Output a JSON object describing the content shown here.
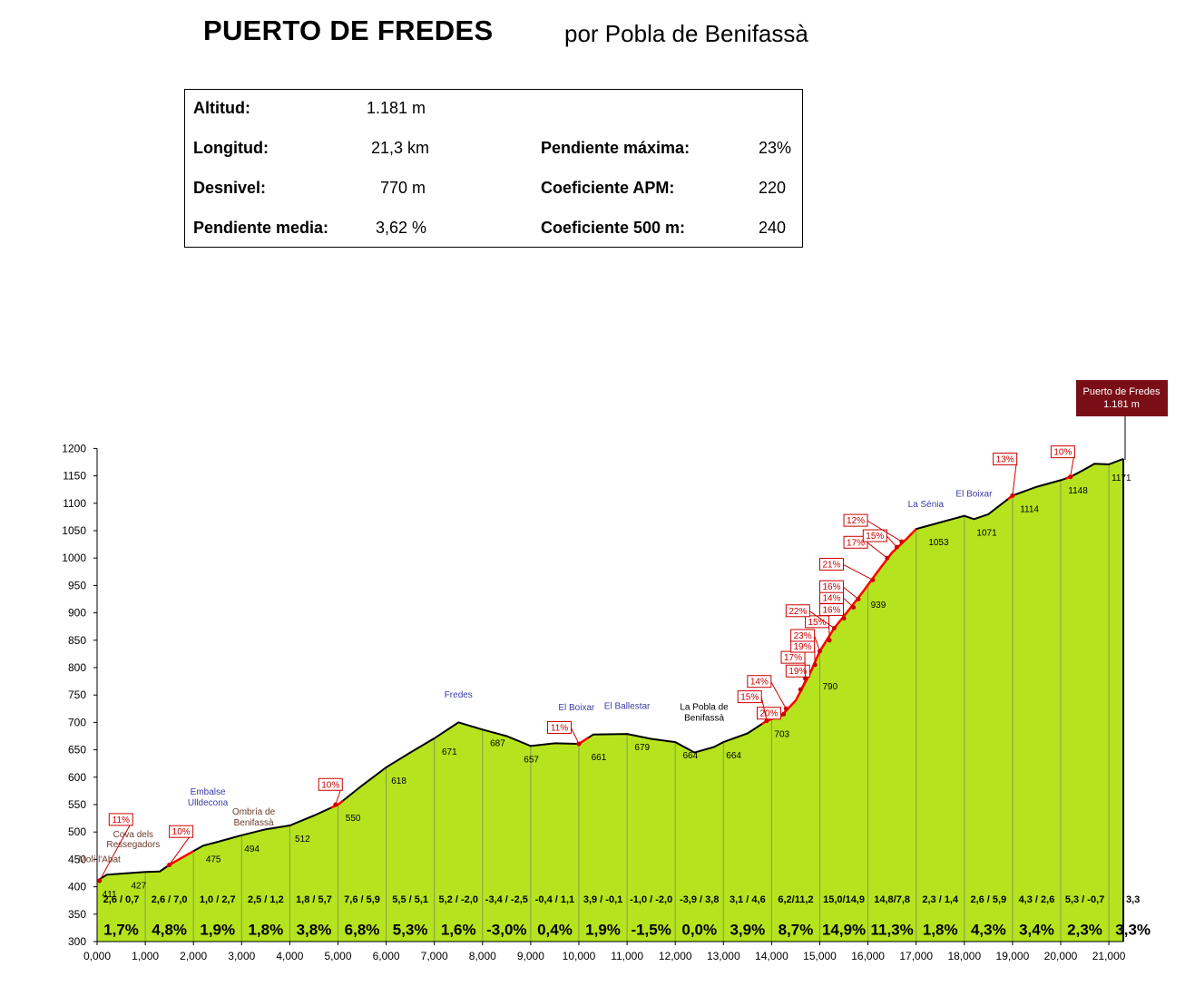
{
  "header": {
    "title": "PUERTO DE FREDES",
    "subtitle": "por Pobla de Benifassà"
  },
  "info": {
    "altitud_label": "Altitud:",
    "altitud_value": "1.181 m",
    "longitud_label": "Longitud:",
    "longitud_value": "21,3 km",
    "desnivel_label": "Desnivel:",
    "desnivel_value": "770 m",
    "pend_media_label": "Pendiente media:",
    "pend_media_value": "3,62 %",
    "pend_max_label": "Pendiente máxima:",
    "pend_max_value": "23%",
    "coef_apm_label": "Coeficiente APM:",
    "coef_apm_value": "220",
    "coef_500_label": "Coeficiente 500 m:",
    "coef_500_value": "240"
  },
  "summit_box": {
    "name": "Puerto de Fredes",
    "alt": "1.181 m"
  },
  "chart_data": {
    "type": "area",
    "xlim": [
      0,
      21.3
    ],
    "ylim": [
      300,
      1200
    ],
    "x_ticks": [
      "0,000",
      "1,000",
      "2,000",
      "3,000",
      "4,000",
      "5,000",
      "6,000",
      "7,000",
      "8,000",
      "9,000",
      "10,000",
      "11,000",
      "12,000",
      "13,000",
      "14,000",
      "15,000",
      "16,000",
      "17,000",
      "18,000",
      "19,000",
      "20,000",
      "21,000"
    ],
    "y_ticks": [
      300,
      350,
      400,
      450,
      500,
      550,
      600,
      650,
      700,
      750,
      800,
      850,
      900,
      950,
      1000,
      1050,
      1100,
      1150,
      1200
    ],
    "profile": [
      [
        0,
        411
      ],
      [
        0.2,
        422
      ],
      [
        0.5,
        424
      ],
      [
        1,
        427
      ],
      [
        1.3,
        428
      ],
      [
        1.5,
        440
      ],
      [
        2,
        465
      ],
      [
        2.2,
        475
      ],
      [
        2.5,
        482
      ],
      [
        3,
        494
      ],
      [
        3.5,
        505
      ],
      [
        4,
        512
      ],
      [
        4.5,
        530
      ],
      [
        5,
        550
      ],
      [
        5.5,
        585
      ],
      [
        6,
        618
      ],
      [
        6.5,
        645
      ],
      [
        7,
        671
      ],
      [
        7.5,
        700
      ],
      [
        8,
        687
      ],
      [
        8.5,
        675
      ],
      [
        9,
        657
      ],
      [
        9.5,
        662
      ],
      [
        10,
        661
      ],
      [
        10.3,
        678
      ],
      [
        11,
        679
      ],
      [
        11.5,
        670
      ],
      [
        12,
        664
      ],
      [
        12.4,
        645
      ],
      [
        12.8,
        655
      ],
      [
        13,
        664
      ],
      [
        13.5,
        680
      ],
      [
        13.9,
        703
      ],
      [
        14.2,
        712
      ],
      [
        14.5,
        740
      ],
      [
        14.8,
        790
      ],
      [
        15,
        830
      ],
      [
        15.3,
        872
      ],
      [
        15.6,
        905
      ],
      [
        15.9,
        939
      ],
      [
        16.2,
        975
      ],
      [
        16.5,
        1010
      ],
      [
        16.8,
        1035
      ],
      [
        17,
        1053
      ],
      [
        17.5,
        1065
      ],
      [
        18,
        1077
      ],
      [
        18.2,
        1071
      ],
      [
        18.5,
        1080
      ],
      [
        19,
        1114
      ],
      [
        19.5,
        1130
      ],
      [
        20,
        1142
      ],
      [
        20.2,
        1148
      ],
      [
        20.5,
        1162
      ],
      [
        20.7,
        1172
      ],
      [
        21,
        1171
      ],
      [
        21.3,
        1181
      ]
    ],
    "elevation_labels": [
      {
        "x": 0.05,
        "y": 411,
        "text": "411"
      },
      {
        "x": 0.65,
        "y": 427,
        "text": "427"
      },
      {
        "x": 2.2,
        "y": 475,
        "text": "475"
      },
      {
        "x": 3.0,
        "y": 494,
        "text": "494"
      },
      {
        "x": 4.05,
        "y": 512,
        "text": "512"
      },
      {
        "x": 5.1,
        "y": 550,
        "text": "550"
      },
      {
        "x": 6.05,
        "y": 618,
        "text": "618"
      },
      {
        "x": 7.1,
        "y": 671,
        "text": "671"
      },
      {
        "x": 8.1,
        "y": 687,
        "text": "687"
      },
      {
        "x": 8.8,
        "y": 657,
        "text": "657"
      },
      {
        "x": 10.2,
        "y": 661,
        "text": "661"
      },
      {
        "x": 11.1,
        "y": 679,
        "text": "679"
      },
      {
        "x": 12.1,
        "y": 664,
        "text": "664"
      },
      {
        "x": 13.0,
        "y": 664,
        "text": "664"
      },
      {
        "x": 14.0,
        "y": 703,
        "text": "703"
      },
      {
        "x": 15.0,
        "y": 790,
        "text": "790"
      },
      {
        "x": 16.0,
        "y": 939,
        "text": "939"
      },
      {
        "x": 17.2,
        "y": 1053,
        "text": "1053"
      },
      {
        "x": 18.2,
        "y": 1071,
        "text": "1071"
      },
      {
        "x": 19.1,
        "y": 1114,
        "text": "1114"
      },
      {
        "x": 20.1,
        "y": 1148,
        "text": "1148"
      },
      {
        "x": 21.0,
        "y": 1171,
        "text": "1171"
      }
    ],
    "segment_values": [
      "2,6 / 0,7",
      "2,6 / 7,0",
      "1,0 / 2,7",
      "2,5 / 1,2",
      "1,8 / 5,7",
      "7,6 / 5,9",
      "5,5 / 5,1",
      "5,2 / -2,0",
      "-3,4 / -2,5",
      "-0,4 / 1,1",
      "3,9 / -0,1",
      "-1,0 / -2,0",
      "-3,9 / 3,8",
      "3,1 / 4,6",
      "6,2/11,2",
      "15,0/14,9",
      "14,8/7,8",
      "2,3 / 1,4",
      "2,6 / 5,9",
      "4,3 / 2,6",
      "5,3 / -0,7",
      "3,3"
    ],
    "segment_grades": [
      "1,7%",
      "4,8%",
      "1,9%",
      "1,8%",
      "3,8%",
      "6,8%",
      "5,3%",
      "1,6%",
      "-3,0%",
      "0,4%",
      "1,9%",
      "-1,5%",
      "0,0%",
      "3,9%",
      "8,7%",
      "14,9%",
      "11,3%",
      "1,8%",
      "4,3%",
      "3,4%",
      "2,3%",
      "3,3%"
    ],
    "gradient_flags": [
      {
        "x": 0.05,
        "y": 411,
        "text": "11%",
        "lx": 0.25,
        "ly": 522
      },
      {
        "x": 1.5,
        "y": 440,
        "text": "10%",
        "lx": 1.5,
        "ly": 500
      },
      {
        "x": 4.95,
        "y": 550,
        "text": "10%",
        "lx": 4.6,
        "ly": 586
      },
      {
        "x": 10.0,
        "y": 661,
        "text": "11%",
        "lx": 9.35,
        "ly": 690
      },
      {
        "x": 14.25,
        "y": 715,
        "text": "20%",
        "lx": 13.7,
        "ly": 716
      },
      {
        "x": 13.9,
        "y": 703,
        "text": "15%",
        "lx": 13.3,
        "ly": 746
      },
      {
        "x": 14.3,
        "y": 725,
        "text": "14%",
        "lx": 13.5,
        "ly": 774
      },
      {
        "x": 14.6,
        "y": 760,
        "text": "19%",
        "lx": 14.3,
        "ly": 793
      },
      {
        "x": 14.7,
        "y": 780,
        "text": "17%",
        "lx": 14.2,
        "ly": 818
      },
      {
        "x": 14.9,
        "y": 805,
        "text": "19%",
        "lx": 14.4,
        "ly": 838
      },
      {
        "x": 15.0,
        "y": 830,
        "text": "23%",
        "lx": 14.4,
        "ly": 858
      },
      {
        "x": 15.2,
        "y": 850,
        "text": "15%",
        "lx": 14.7,
        "ly": 883
      },
      {
        "x": 15.3,
        "y": 872,
        "text": "22%",
        "lx": 14.3,
        "ly": 903
      },
      {
        "x": 15.5,
        "y": 890,
        "text": "16%",
        "lx": 15.0,
        "ly": 905
      },
      {
        "x": 15.7,
        "y": 910,
        "text": "14%",
        "lx": 15.0,
        "ly": 927
      },
      {
        "x": 15.8,
        "y": 925,
        "text": "16%",
        "lx": 15.0,
        "ly": 947
      },
      {
        "x": 16.1,
        "y": 960,
        "text": "21%",
        "lx": 15.0,
        "ly": 988
      },
      {
        "x": 16.4,
        "y": 1000,
        "text": "17%",
        "lx": 15.5,
        "ly": 1028
      },
      {
        "x": 16.6,
        "y": 1020,
        "text": "15%",
        "lx": 15.9,
        "ly": 1040
      },
      {
        "x": 16.7,
        "y": 1030,
        "text": "12%",
        "lx": 15.5,
        "ly": 1068
      },
      {
        "x": 19.0,
        "y": 1114,
        "text": "13%",
        "lx": 18.6,
        "ly": 1180
      },
      {
        "x": 20.2,
        "y": 1148,
        "text": "10%",
        "lx": 19.8,
        "ly": 1193
      }
    ],
    "places": [
      {
        "x": 0.05,
        "y": 445,
        "text": "Molí l'Abat",
        "color": "#6b3a2a"
      },
      {
        "x": 0.75,
        "y": 490,
        "text": "Cova dels",
        "color": "#6b3a2a"
      },
      {
        "x": 0.75,
        "y": 472,
        "text": "Ressegadors",
        "color": "#6b3a2a"
      },
      {
        "x": 2.3,
        "y": 568,
        "text": "Embalse",
        "color": "#3a3aa8"
      },
      {
        "x": 2.3,
        "y": 548,
        "text": "Ulldecona",
        "color": "#3a3aa8"
      },
      {
        "x": 3.25,
        "y": 532,
        "text": "Ombría de",
        "color": "#6b3a2a"
      },
      {
        "x": 3.25,
        "y": 512,
        "text": "Benifassà",
        "color": "#6b3a2a"
      },
      {
        "x": 7.5,
        "y": 745,
        "text": "Fredes",
        "color": "#3a3aa8"
      },
      {
        "x": 9.95,
        "y": 722,
        "text": "El Boixar",
        "color": "#3a3aa8"
      },
      {
        "x": 11.0,
        "y": 725,
        "text": "El Ballestar",
        "color": "#3a3aa8"
      },
      {
        "x": 12.6,
        "y": 723,
        "text": "La Pobla de",
        "color": "#000000"
      },
      {
        "x": 12.6,
        "y": 703,
        "text": "Benifassà",
        "color": "#000000"
      },
      {
        "x": 17.2,
        "y": 1093,
        "text": "La Sénia",
        "color": "#3a3aa8"
      },
      {
        "x": 18.2,
        "y": 1112,
        "text": "El Boixar",
        "color": "#3a3aa8"
      }
    ],
    "colors": {
      "fill": "#b5e31e",
      "line": "#000000",
      "steep": "#ff0000",
      "flag_border": "#cc0000",
      "summit_box": "#7a0e17"
    }
  }
}
